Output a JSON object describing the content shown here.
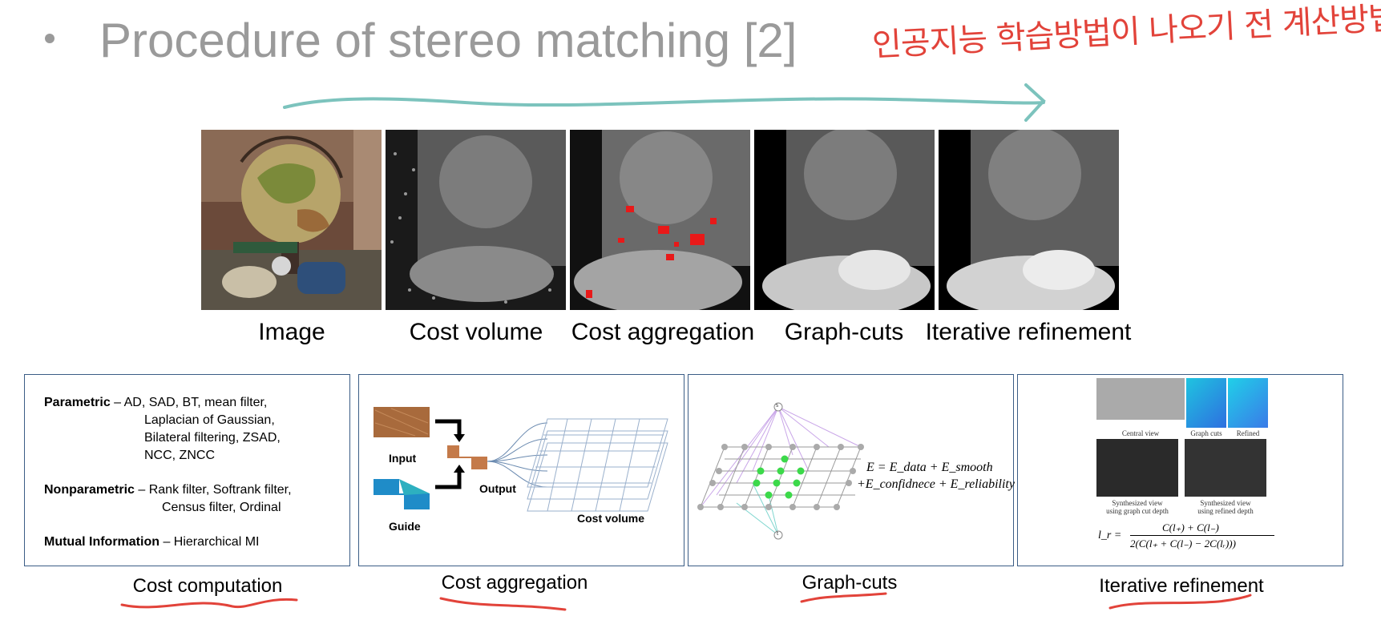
{
  "title": {
    "bullet": "•",
    "text": "Procedure of stereo matching [2]",
    "handwritten_note": "인공지능 학습방법이 나오기 전 계산방법"
  },
  "image_row": {
    "captions": [
      "Image",
      "Cost volume",
      "Cost aggregation",
      "Graph-cuts",
      "Iterative refinement"
    ]
  },
  "cost_computation": {
    "caption": "Cost computation",
    "parametric_label": "Parametric",
    "parametric_items": [
      "– AD, SAD, BT, mean filter,",
      "Laplacian  of Gaussian,",
      "Bilateral  filtering,  ZSAD,",
      "NCC, ZNCC"
    ],
    "nonparametric_label": "Nonparametric",
    "nonparametric_items": [
      "– Rank filter,  Softrank filter,",
      "Census filter,  Ordinal"
    ],
    "mi_label": "Mutual Information",
    "mi_items": "– Hierarchical  MI"
  },
  "cost_aggregation": {
    "caption": "Cost aggregation",
    "input_label": "Input",
    "guide_label": "Guide",
    "output_label": "Output",
    "cost_volume_label": "Cost volume"
  },
  "graph_cuts": {
    "caption": "Graph-cuts",
    "source_label": "s",
    "sink_label": "t",
    "equation_line1": "E = E_data + E_smooth",
    "equation_line2": "+E_confidnece + E_reliability"
  },
  "iterative_refinement": {
    "caption": "Iterative refinement",
    "labels": [
      "Central view",
      "Graph cuts",
      "Refined"
    ],
    "synth_label_1a": "Synthesized view",
    "synth_label_1b": "using graph cut depth",
    "synth_label_2a": "Synthesized view",
    "synth_label_2b": "using refined depth",
    "formula_lhs": "l_r =",
    "formula_num": "C(l₊) + C(l₋)",
    "formula_den": "2(C(l₊ + C(l₋) − 2C(lᵣ)))"
  },
  "colors": {
    "title_gray": "#9a9a9a",
    "annotation_red": "#e2433a",
    "arrow_teal": "#7cc3bd",
    "box_border": "#3b5d86"
  }
}
